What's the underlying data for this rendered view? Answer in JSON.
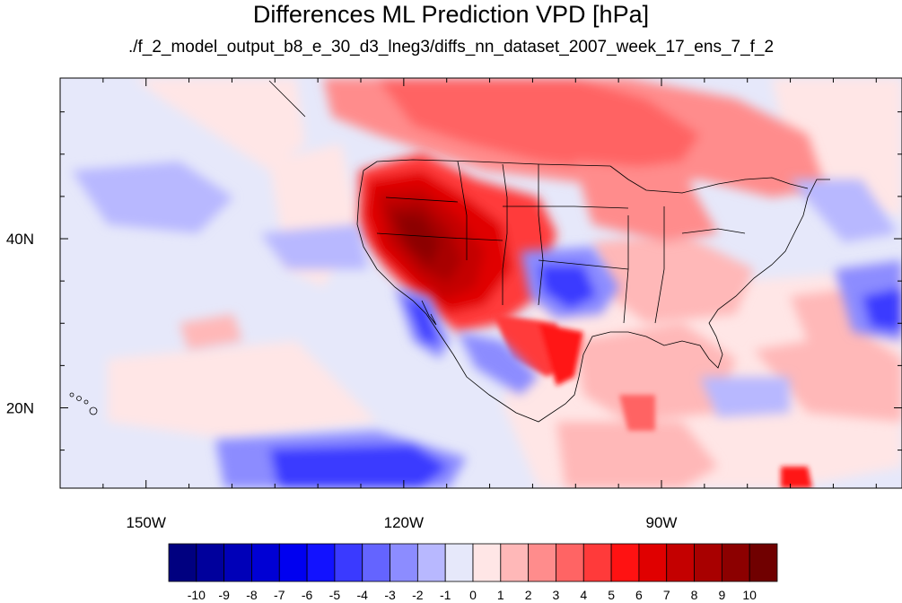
{
  "title": "Differences ML Prediction VPD [hPa]",
  "subtitle": "./f_2_model_output_b8_e_30_d3_lneg3/diffs_nn_dataset_2007_week_17_ens_7_f_2",
  "map": {
    "projection": "cylindrical equidistant",
    "lon_range": [
      -160,
      -62
    ],
    "lat_range": [
      10.5,
      59
    ],
    "lon_ticks": [
      {
        "value": -150,
        "label": "150W"
      },
      {
        "value": -120,
        "label": "120W"
      },
      {
        "value": -90,
        "label": "90W"
      }
    ],
    "lat_ticks": [
      {
        "value": 40,
        "label": "40N"
      },
      {
        "value": 20,
        "label": "20N"
      }
    ],
    "background_color": "#e6e8fa"
  },
  "colorbar": {
    "labels": [
      "-10",
      "-9",
      "-8",
      "-7",
      "-6",
      "-5",
      "-4",
      "-3",
      "-2",
      "-1",
      "0",
      "1",
      "2",
      "3",
      "4",
      "5",
      "6",
      "7",
      "8",
      "9",
      "10"
    ],
    "colors": [
      "#000080",
      "#00009c",
      "#0000b8",
      "#0000d4",
      "#0000f0",
      "#1212ff",
      "#3a3aff",
      "#6464ff",
      "#8c8cff",
      "#b8b8ff",
      "#e6e8fa",
      "#ffe6e6",
      "#ffb8b8",
      "#ff8c8c",
      "#ff6464",
      "#ff3a3a",
      "#ff1212",
      "#e00000",
      "#c40000",
      "#a80000",
      "#8c0000",
      "#700000"
    ]
  }
}
